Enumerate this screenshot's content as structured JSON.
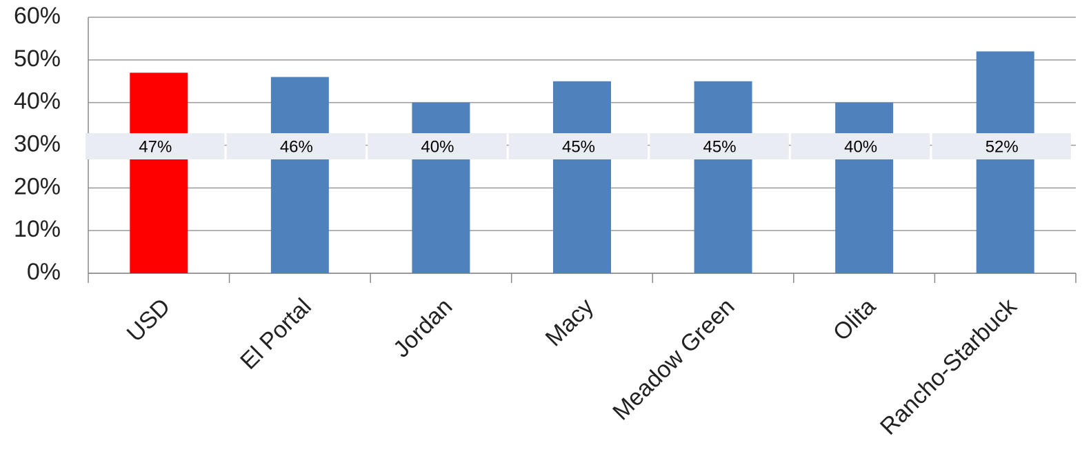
{
  "chart_data": {
    "type": "bar",
    "categories": [
      "USD",
      "El Portal",
      "Jordan",
      "Macy",
      "Meadow Green",
      "Olita",
      "Rancho-Starbuck"
    ],
    "values": [
      47,
      46,
      40,
      45,
      45,
      40,
      52
    ],
    "value_labels": [
      "47%",
      "46%",
      "40%",
      "45%",
      "45%",
      "40%",
      "52%"
    ],
    "colors": [
      "#ff0000",
      "#4f81bd",
      "#4f81bd",
      "#4f81bd",
      "#4f81bd",
      "#4f81bd",
      "#4f81bd"
    ],
    "ylim": [
      0,
      60
    ],
    "yticks": [
      {
        "value": 0,
        "label": "0%"
      },
      {
        "value": 10,
        "label": "10%"
      },
      {
        "value": 20,
        "label": "20%"
      },
      {
        "value": 30,
        "label": "30%"
      },
      {
        "value": 40,
        "label": "40%"
      },
      {
        "value": 50,
        "label": "50%"
      },
      {
        "value": 60,
        "label": "60%"
      }
    ],
    "grid": true
  }
}
